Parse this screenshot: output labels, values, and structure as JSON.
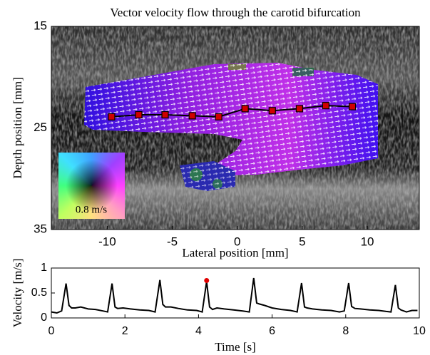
{
  "chart_data": [
    {
      "type": "line",
      "title": "Vector velocity flow through the carotid bifurcation",
      "xlabel": "Lateral position [mm]",
      "ylabel": "Depth position [mm]",
      "xlim": [
        -14.3,
        14
      ],
      "ylim": [
        15,
        35
      ],
      "y_reversed": true,
      "xticks": [
        -10,
        -5,
        0,
        5,
        10
      ],
      "yticks": [
        15,
        25,
        35
      ],
      "colorwheel_label": "0.8 m/s",
      "series": [
        {
          "color": "#000000",
          "marker_color": "#d00000",
          "x": [
            -9.67,
            -7.58,
            -5.55,
            -3.46,
            -1.43,
            0.6,
            2.69,
            4.78,
            6.81,
            8.85
          ],
          "y": [
            23.9,
            23.7,
            23.7,
            23.8,
            23.9,
            23.1,
            23.3,
            23.1,
            22.8,
            22.9
          ]
        }
      ]
    },
    {
      "type": "line",
      "xlabel": "Time [s]",
      "ylabel": "Velocity [m/s]",
      "xlim": [
        0,
        10
      ],
      "ylim": [
        0,
        1
      ],
      "xticks": [
        0,
        2,
        4,
        6,
        8,
        10
      ],
      "yticks": [
        0,
        0.5,
        1
      ],
      "series": [
        {
          "color": "#000000",
          "x": [
            0,
            0.15,
            0.28,
            0.4,
            0.48,
            0.55,
            0.65,
            0.8,
            1.0,
            1.2,
            1.4,
            1.53,
            1.65,
            1.73,
            1.8,
            1.95,
            2.15,
            2.4,
            2.65,
            2.82,
            2.95,
            3.03,
            3.1,
            3.25,
            3.45,
            3.7,
            3.95,
            4.1,
            4.22,
            4.3,
            4.38,
            4.5,
            4.7,
            4.95,
            5.2,
            5.38,
            5.5,
            5.58,
            5.65,
            5.8,
            6.0,
            6.25,
            6.5,
            6.68,
            6.8,
            6.88,
            6.95,
            7.1,
            7.35,
            7.6,
            7.83,
            7.96,
            8.08,
            8.16,
            8.25,
            8.4,
            8.65,
            8.9,
            9.1,
            9.23,
            9.35,
            9.43,
            9.5,
            9.65,
            9.8,
            9.95
          ],
          "y": [
            0.12,
            0.1,
            0.14,
            0.69,
            0.25,
            0.2,
            0.2,
            0.22,
            0.18,
            0.17,
            0.14,
            0.12,
            0.69,
            0.22,
            0.19,
            0.2,
            0.18,
            0.16,
            0.15,
            0.12,
            0.76,
            0.27,
            0.22,
            0.22,
            0.19,
            0.16,
            0.15,
            0.12,
            0.73,
            0.22,
            0.17,
            0.2,
            0.18,
            0.16,
            0.14,
            0.12,
            0.8,
            0.3,
            0.28,
            0.25,
            0.2,
            0.17,
            0.15,
            0.12,
            0.7,
            0.22,
            0.2,
            0.18,
            0.16,
            0.15,
            0.12,
            0.14,
            0.7,
            0.23,
            0.19,
            0.18,
            0.16,
            0.15,
            0.13,
            0.12,
            0.66,
            0.2,
            0.16,
            0.12,
            0.15,
            0.15
          ]
        }
      ],
      "markers": {
        "x": [
          4.22
        ],
        "y": [
          0.75
        ],
        "color": "#e00000"
      }
    }
  ]
}
